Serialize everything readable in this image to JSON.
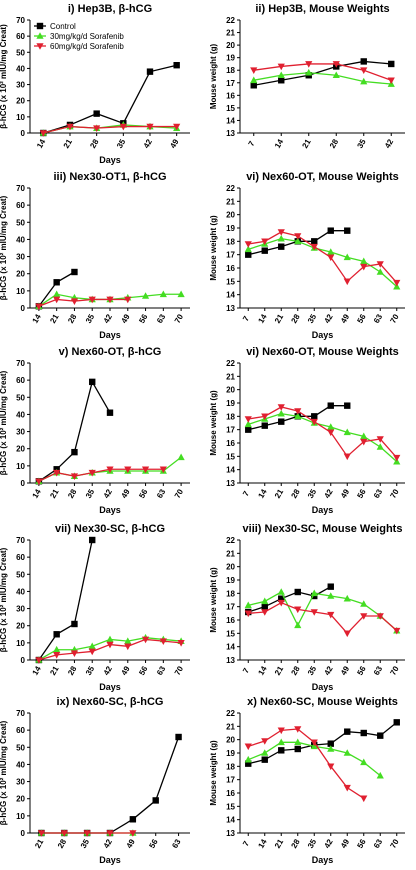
{
  "legend": {
    "entries": [
      {
        "label": "Control",
        "color": "#000000",
        "marker": "square"
      },
      {
        "label": "30mg/kg/d Sorafenib",
        "color": "#44dd22",
        "marker": "triangle-up"
      },
      {
        "label": "60mg/kg/d Sorafenib",
        "color": "#e02030",
        "marker": "triangle-down"
      }
    ]
  },
  "chart_data": [
    {
      "type": "line",
      "title": "i) Hep3B, β-hCG",
      "xlabel": "Days",
      "ylabel": "β-hCG (x 10² mIU/mg Creat)",
      "x": [
        14,
        21,
        28,
        35,
        42,
        49
      ],
      "ylim": [
        0,
        70
      ],
      "yticks": [
        0,
        10,
        20,
        30,
        40,
        50,
        60,
        70
      ],
      "series": [
        {
          "name": "Control",
          "values": [
            0,
            5,
            12,
            6,
            38,
            42
          ]
        },
        {
          "name": "30mg/kg/d Sorafenib",
          "values": [
            0,
            4,
            3,
            5,
            4,
            3
          ]
        },
        {
          "name": "60mg/kg/d Sorafenib",
          "values": [
            0,
            4,
            3,
            4,
            4,
            4
          ]
        }
      ]
    },
    {
      "type": "line",
      "title": "ii) Hep3B, Mouse Weights",
      "xlabel": "",
      "ylabel": "Mouse weight (g)",
      "x": [
        7,
        14,
        21,
        28,
        35,
        42
      ],
      "ylim": [
        13,
        22
      ],
      "yticks": [
        13,
        14,
        15,
        16,
        17,
        18,
        19,
        20,
        21,
        22
      ],
      "series": [
        {
          "name": "Control",
          "values": [
            16.8,
            17.2,
            17.6,
            18.3,
            18.7,
            18.5
          ]
        },
        {
          "name": "30mg/kg/d Sorafenib",
          "values": [
            17.2,
            17.6,
            17.8,
            17.6,
            17.1,
            16.9
          ]
        },
        {
          "name": "60mg/kg/d Sorafenib",
          "values": [
            18.0,
            18.3,
            18.5,
            18.5,
            18.0,
            17.2
          ]
        }
      ]
    },
    {
      "type": "line",
      "title": "iii) Nex30-OT1, β-hCG",
      "xlabel": "Days",
      "ylabel": "β-hCG (x 10² mIU/mg Creat)",
      "x": [
        14,
        21,
        28,
        35,
        42,
        49,
        56,
        63,
        70
      ],
      "ylim": [
        0,
        70
      ],
      "yticks": [
        0,
        10,
        20,
        30,
        40,
        50,
        60,
        70
      ],
      "series": [
        {
          "name": "Control",
          "values": [
            1,
            15,
            21,
            null,
            null,
            null,
            null,
            null,
            null
          ]
        },
        {
          "name": "30mg/kg/d Sorafenib",
          "values": [
            1,
            8,
            6,
            5,
            5,
            6,
            7,
            8,
            8
          ]
        },
        {
          "name": "60mg/kg/d Sorafenib",
          "values": [
            1,
            5,
            4,
            5,
            5,
            5,
            null,
            null,
            null
          ]
        }
      ]
    },
    {
      "type": "line",
      "title": "vi) Nex60-OT, Mouse Weights",
      "xlabel": "Days",
      "ylabel": "Mouse weight (g)",
      "x": [
        7,
        14,
        21,
        28,
        35,
        42,
        49,
        56,
        63,
        70
      ],
      "ylim": [
        13,
        22
      ],
      "yticks": [
        13,
        14,
        15,
        16,
        17,
        18,
        19,
        20,
        21,
        22
      ],
      "series": [
        {
          "name": "Control",
          "values": [
            17.0,
            17.3,
            17.6,
            18.0,
            18.0,
            18.8,
            18.8,
            null,
            null,
            null
          ]
        },
        {
          "name": "30mg/kg/d Sorafenib",
          "values": [
            17.4,
            17.8,
            18.2,
            18.0,
            17.5,
            17.2,
            16.8,
            16.5,
            15.7,
            14.6
          ]
        },
        {
          "name": "60mg/kg/d Sorafenib",
          "values": [
            17.8,
            18.0,
            18.7,
            18.4,
            17.6,
            16.8,
            15.0,
            16.1,
            16.3,
            14.9
          ]
        }
      ]
    },
    {
      "type": "line",
      "title": "v) Nex60-OT, β-hCG",
      "xlabel": "Days",
      "ylabel": "β-hCG (x 10² mIU/mg Creat)",
      "x": [
        14,
        21,
        28,
        35,
        42,
        49,
        56,
        63,
        70
      ],
      "ylim": [
        0,
        70
      ],
      "yticks": [
        0,
        10,
        20,
        30,
        40,
        50,
        60,
        70
      ],
      "series": [
        {
          "name": "Control",
          "values": [
            1,
            8,
            18,
            59,
            41,
            null,
            null,
            null,
            null
          ]
        },
        {
          "name": "30mg/kg/d Sorafenib",
          "values": [
            1,
            6,
            4,
            6,
            7,
            7,
            7,
            7,
            15
          ]
        },
        {
          "name": "60mg/kg/d Sorafenib",
          "values": [
            1,
            6,
            4,
            6,
            8,
            8,
            8,
            8,
            null
          ]
        }
      ]
    },
    {
      "type": "line",
      "title": "vi) Nex60-OT, Mouse Weights",
      "xlabel": "Days",
      "ylabel": "Mouse weight (g)",
      "x": [
        7,
        14,
        21,
        28,
        35,
        42,
        49,
        56,
        63,
        70
      ],
      "ylim": [
        13,
        22
      ],
      "yticks": [
        13,
        14,
        15,
        16,
        17,
        18,
        19,
        20,
        21,
        22
      ],
      "series": [
        {
          "name": "Control",
          "values": [
            17.0,
            17.3,
            17.6,
            18.0,
            18.0,
            18.8,
            18.8,
            null,
            null,
            null
          ]
        },
        {
          "name": "30mg/kg/d Sorafenib",
          "values": [
            17.4,
            17.8,
            18.2,
            18.0,
            17.5,
            17.2,
            16.8,
            16.5,
            15.7,
            14.6
          ]
        },
        {
          "name": "60mg/kg/d Sorafenib",
          "values": [
            17.8,
            18.0,
            18.7,
            18.4,
            17.6,
            16.8,
            15.0,
            16.1,
            16.3,
            14.9
          ]
        }
      ]
    },
    {
      "type": "line",
      "title": "vii) Nex30-SC, β-hCG",
      "xlabel": "Days",
      "ylabel": "β-hCG (x 10² mIU/mg Creat)",
      "x": [
        14,
        21,
        28,
        35,
        42,
        49,
        56,
        63,
        70
      ],
      "ylim": [
        0,
        70
      ],
      "yticks": [
        0,
        10,
        20,
        30,
        40,
        50,
        60,
        70
      ],
      "series": [
        {
          "name": "Control",
          "values": [
            0,
            15,
            21,
            70,
            null,
            null,
            null,
            null,
            null
          ]
        },
        {
          "name": "30mg/kg/d Sorafenib",
          "values": [
            0,
            6,
            6,
            8,
            12,
            11,
            13,
            12,
            11
          ]
        },
        {
          "name": "60mg/kg/d Sorafenib",
          "values": [
            0,
            3,
            4,
            5,
            9,
            8,
            12,
            11,
            10
          ]
        }
      ]
    },
    {
      "type": "line",
      "title": "viii) Nex30-SC, Mouse Weights",
      "xlabel": "Days",
      "ylabel": "Mouse weight (g)",
      "x": [
        7,
        14,
        21,
        28,
        35,
        42,
        49,
        56,
        63,
        70
      ],
      "ylim": [
        13,
        22
      ],
      "yticks": [
        13,
        14,
        15,
        16,
        17,
        18,
        19,
        20,
        21,
        22
      ],
      "series": [
        {
          "name": "Control",
          "values": [
            16.6,
            17.0,
            17.6,
            18.1,
            17.8,
            18.5,
            null,
            null,
            null,
            null
          ]
        },
        {
          "name": "30mg/kg/d Sorafenib",
          "values": [
            17.1,
            17.4,
            18.1,
            15.6,
            18.0,
            17.8,
            17.6,
            17.2,
            16.3,
            15.2
          ]
        },
        {
          "name": "60mg/kg/d Sorafenib",
          "values": [
            16.5,
            16.6,
            17.3,
            16.8,
            16.6,
            16.4,
            15.0,
            16.3,
            16.3,
            15.2
          ]
        }
      ]
    },
    {
      "type": "line",
      "title": "ix) Nex60-SC, β-hCG",
      "xlabel": "Days",
      "ylabel": "β-hCG (x 10² mIU/mg Creat)",
      "x": [
        21,
        28,
        35,
        42,
        49,
        56,
        63
      ],
      "ylim": [
        0,
        70
      ],
      "yticks": [
        0,
        10,
        20,
        30,
        40,
        50,
        60,
        70
      ],
      "series": [
        {
          "name": "Control",
          "values": [
            0,
            0,
            0,
            0,
            8,
            19,
            56
          ]
        },
        {
          "name": "30mg/kg/d Sorafenib",
          "values": [
            0,
            0,
            0,
            0,
            0,
            null,
            null
          ]
        },
        {
          "name": "60mg/kg/d Sorafenib",
          "values": [
            0,
            0,
            0,
            0,
            0,
            null,
            null
          ]
        }
      ]
    },
    {
      "type": "line",
      "title": "x) Nex60-SC, Mouse Weights",
      "xlabel": "Days",
      "ylabel": "Mouse weight (g)",
      "x": [
        7,
        14,
        21,
        28,
        35,
        42,
        49,
        56,
        63,
        70
      ],
      "ylim": [
        13,
        22
      ],
      "yticks": [
        13,
        14,
        15,
        16,
        17,
        18,
        19,
        20,
        21,
        22
      ],
      "series": [
        {
          "name": "Control",
          "values": [
            18.2,
            18.5,
            19.2,
            19.3,
            19.6,
            19.7,
            20.6,
            20.5,
            20.3,
            21.3
          ]
        },
        {
          "name": "30mg/kg/d Sorafenib",
          "values": [
            18.5,
            19.0,
            19.8,
            19.8,
            19.5,
            19.3,
            19.0,
            18.3,
            17.3,
            null
          ]
        },
        {
          "name": "60mg/kg/d Sorafenib",
          "values": [
            19.5,
            19.9,
            20.7,
            20.8,
            19.8,
            18.0,
            16.4,
            15.6,
            null,
            null
          ]
        }
      ]
    }
  ]
}
